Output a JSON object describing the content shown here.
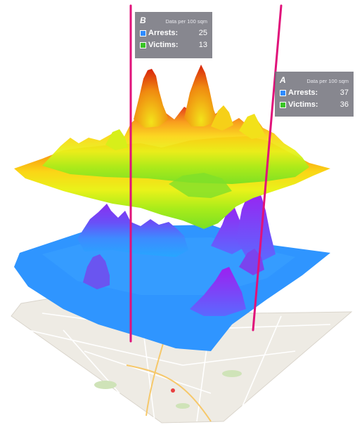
{
  "panels": {
    "b": {
      "letter": "B",
      "note": "Data per 100 sqm",
      "arrests_label": "Arrests:",
      "arrests_value": "25",
      "victims_label": "Victims:",
      "victims_value": "13"
    },
    "a": {
      "letter": "A",
      "note": "Data per 100 sqm",
      "arrests_label": "Arrests:",
      "arrests_value": "37",
      "victims_label": "Victims:",
      "victims_value": "36"
    }
  },
  "colors": {
    "arrests": "#2f8cff",
    "victims": "#39c425",
    "marker_line": "#e0127a",
    "map_base": "#eeebe4"
  },
  "layers": [
    "victims-surface",
    "arrests-surface",
    "base-map"
  ]
}
